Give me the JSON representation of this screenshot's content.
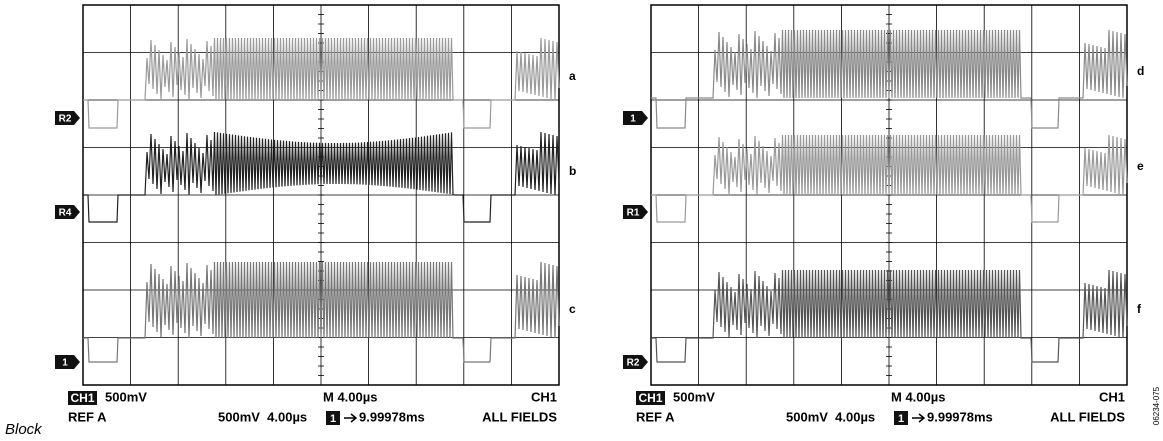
{
  "panels": [
    {
      "trace_labels": [
        "a",
        "b",
        "c"
      ],
      "markers": [
        "R2",
        "R4",
        "1"
      ],
      "readout": {
        "channel": "CH1",
        "volts": "500mV",
        "timebase": "M 4.00µs",
        "trigger_source": "CH1",
        "ref": "REF A",
        "ref_settings": "500mV  4.00µs",
        "marker": "1",
        "delay": "9.99978ms",
        "fields": "ALL FIELDS"
      }
    },
    {
      "trace_labels": [
        "d",
        "e",
        "f"
      ],
      "markers": [
        "1",
        "R1",
        "R2"
      ],
      "readout": {
        "channel": "CH1",
        "volts": "500mV",
        "timebase": "M 4.00µs",
        "trigger_source": "CH1",
        "ref": "REF A",
        "ref_settings": "500mV  4.00µs",
        "marker": "1",
        "delay": "9.99978ms",
        "fields": "ALL FIELDS"
      }
    }
  ],
  "caption": "Block",
  "figure_id": "06234-075"
}
